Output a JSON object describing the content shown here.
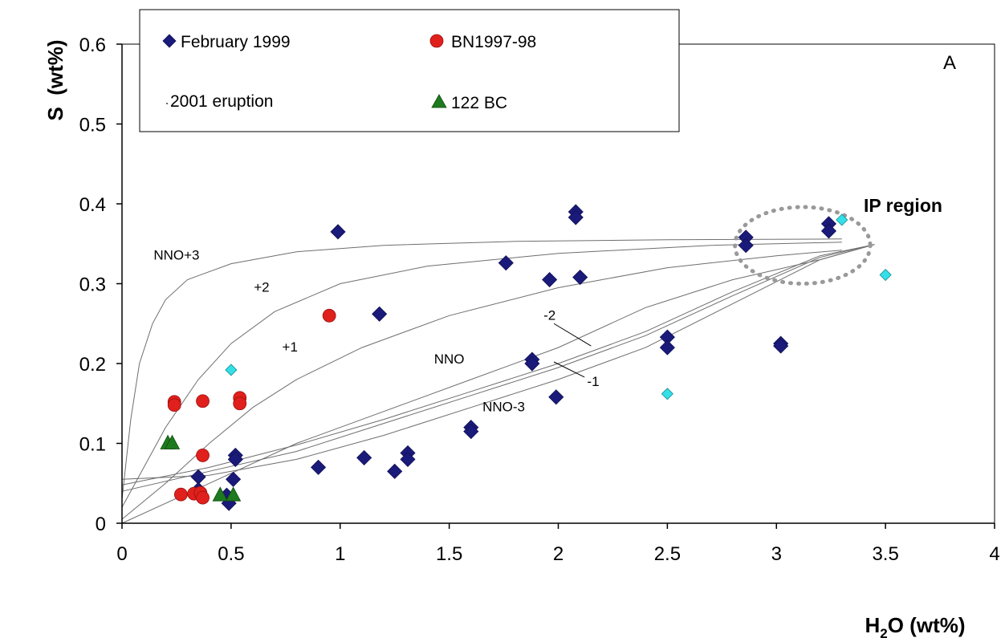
{
  "chart_data": {
    "type": "scatter",
    "panel_label": "A",
    "xlabel": "H₂O (wt%)",
    "ylabel": "S  (wt%)",
    "xlim": [
      0,
      4
    ],
    "ylim": [
      0,
      0.6
    ],
    "x_ticks": [
      "0",
      "0.5",
      "1",
      "1.5",
      "2",
      "2.5",
      "3",
      "3.5",
      "4"
    ],
    "y_ticks": [
      "0",
      "0.1",
      "0.2",
      "0.3",
      "0.4",
      "0.5",
      "0.6"
    ],
    "legend": {
      "placement": "top-left",
      "entries": [
        "February 1999",
        "BN1997-98",
        "2001 eruption",
        "122 BC"
      ]
    },
    "colors": {
      "february_1999": "#1a1a7a",
      "bn1997_98": "#e0201c",
      "eruption_2001": "#33e0e8",
      "bc122": "#1e7a1e",
      "curves": "#6e6e6e",
      "ip_region": "#999999"
    },
    "series": [
      {
        "name": "February 1999",
        "marker": "diamond",
        "points": [
          [
            0.35,
            0.058
          ],
          [
            0.35,
            0.042
          ],
          [
            0.48,
            0.035
          ],
          [
            0.49,
            0.025
          ],
          [
            0.51,
            0.055
          ],
          [
            0.52,
            0.085
          ],
          [
            0.52,
            0.08
          ],
          [
            0.9,
            0.07
          ],
          [
            0.99,
            0.365
          ],
          [
            1.11,
            0.082
          ],
          [
            1.18,
            0.262
          ],
          [
            1.25,
            0.065
          ],
          [
            1.31,
            0.088
          ],
          [
            1.31,
            0.08
          ],
          [
            1.6,
            0.12
          ],
          [
            1.6,
            0.115
          ],
          [
            1.76,
            0.326
          ],
          [
            1.88,
            0.205
          ],
          [
            1.88,
            0.2
          ],
          [
            1.96,
            0.305
          ],
          [
            1.99,
            0.158
          ],
          [
            2.08,
            0.39
          ],
          [
            2.08,
            0.383
          ],
          [
            2.1,
            0.308
          ],
          [
            2.5,
            0.233
          ],
          [
            2.5,
            0.22
          ],
          [
            2.86,
            0.358
          ],
          [
            2.86,
            0.348
          ],
          [
            3.02,
            0.225
          ],
          [
            3.02,
            0.222
          ],
          [
            3.24,
            0.375
          ],
          [
            3.24,
            0.366
          ]
        ]
      },
      {
        "name": "BN1997-98",
        "marker": "circle",
        "points": [
          [
            0.24,
            0.152
          ],
          [
            0.24,
            0.148
          ],
          [
            0.37,
            0.153
          ],
          [
            0.37,
            0.085
          ],
          [
            0.54,
            0.157
          ],
          [
            0.54,
            0.15
          ],
          [
            0.95,
            0.26
          ],
          [
            0.27,
            0.036
          ],
          [
            0.33,
            0.037
          ],
          [
            0.36,
            0.038
          ],
          [
            0.37,
            0.032
          ]
        ]
      },
      {
        "name": "2001 eruption",
        "marker": "diamond",
        "points": [
          [
            0.5,
            0.192
          ],
          [
            2.5,
            0.162
          ],
          [
            3.3,
            0.38
          ],
          [
            3.5,
            0.311
          ]
        ]
      },
      {
        "name": "122 BC",
        "marker": "triangle",
        "points": [
          [
            0.21,
            0.1
          ],
          [
            0.23,
            0.1
          ],
          [
            0.45,
            0.035
          ],
          [
            0.51,
            0.035
          ]
        ]
      }
    ],
    "curves": [
      {
        "label": "NNO+3",
        "points": [
          [
            0,
            0.03
          ],
          [
            0.04,
            0.13
          ],
          [
            0.08,
            0.2
          ],
          [
            0.14,
            0.25
          ],
          [
            0.2,
            0.28
          ],
          [
            0.3,
            0.305
          ],
          [
            0.5,
            0.325
          ],
          [
            0.8,
            0.34
          ],
          [
            1.2,
            0.348
          ],
          [
            1.8,
            0.353
          ],
          [
            2.5,
            0.355
          ],
          [
            3.3,
            0.356
          ]
        ]
      },
      {
        "label": "+2",
        "points": [
          [
            0,
            0.02
          ],
          [
            0.1,
            0.07
          ],
          [
            0.2,
            0.12
          ],
          [
            0.35,
            0.18
          ],
          [
            0.5,
            0.225
          ],
          [
            0.7,
            0.265
          ],
          [
            1,
            0.3
          ],
          [
            1.4,
            0.322
          ],
          [
            2,
            0.338
          ],
          [
            2.7,
            0.348
          ],
          [
            3.3,
            0.352
          ]
        ]
      },
      {
        "label": "+1",
        "points": [
          [
            0,
            0.005
          ],
          [
            0.2,
            0.05
          ],
          [
            0.4,
            0.1
          ],
          [
            0.6,
            0.145
          ],
          [
            0.8,
            0.18
          ],
          [
            1.1,
            0.22
          ],
          [
            1.5,
            0.26
          ],
          [
            2,
            0.295
          ],
          [
            2.5,
            0.32
          ],
          [
            3,
            0.335
          ],
          [
            3.3,
            0.342
          ]
        ]
      },
      {
        "label": "NNO",
        "points": [
          [
            0,
            0
          ],
          [
            0.4,
            0.05
          ],
          [
            0.8,
            0.1
          ],
          [
            1.2,
            0.14
          ],
          [
            1.6,
            0.18
          ],
          [
            2,
            0.22
          ],
          [
            2.4,
            0.27
          ],
          [
            2.8,
            0.305
          ],
          [
            3.2,
            0.33
          ],
          [
            3.45,
            0.349
          ]
        ]
      },
      {
        "label": "-1",
        "points": [
          [
            0,
            0.048
          ],
          [
            0.4,
            0.07
          ],
          [
            0.8,
            0.098
          ],
          [
            1.2,
            0.13
          ],
          [
            1.6,
            0.165
          ],
          [
            2,
            0.2
          ],
          [
            2.4,
            0.24
          ],
          [
            2.8,
            0.29
          ],
          [
            3.2,
            0.335
          ],
          [
            3.45,
            0.349
          ]
        ]
      },
      {
        "label": "-2",
        "points": [
          [
            0,
            0.04
          ],
          [
            0.4,
            0.065
          ],
          [
            0.8,
            0.09
          ],
          [
            1.2,
            0.125
          ],
          [
            1.6,
            0.16
          ],
          [
            2,
            0.195
          ],
          [
            2.4,
            0.235
          ],
          [
            2.8,
            0.285
          ],
          [
            3.2,
            0.333
          ],
          [
            3.45,
            0.349
          ]
        ]
      },
      {
        "label": "NNO-3",
        "points": [
          [
            0,
            0.055
          ],
          [
            0.4,
            0.06
          ],
          [
            0.8,
            0.08
          ],
          [
            1.2,
            0.11
          ],
          [
            1.6,
            0.145
          ],
          [
            2,
            0.18
          ],
          [
            2.4,
            0.22
          ],
          [
            2.8,
            0.275
          ],
          [
            3.2,
            0.33
          ],
          [
            3.45,
            0.349
          ]
        ]
      }
    ],
    "curve_labels": [
      {
        "text": "NNO+3",
        "x": 0.25,
        "y": 0.33
      },
      {
        "text": "+2",
        "x": 0.64,
        "y": 0.29
      },
      {
        "text": "+1",
        "x": 0.77,
        "y": 0.215
      },
      {
        "text": "NNO",
        "x": 1.5,
        "y": 0.2
      },
      {
        "text": "-2",
        "x": 1.96,
        "y": 0.255
      },
      {
        "text": "-1",
        "x": 2.16,
        "y": 0.172
      },
      {
        "text": "NNO-3",
        "x": 1.75,
        "y": 0.14
      }
    ],
    "annotation": {
      "text": "IP region",
      "x": 3.4,
      "y": 0.39
    },
    "ip_region": {
      "cx": 3.12,
      "cy": 0.348,
      "rx": 0.31,
      "ry": 0.048
    }
  }
}
